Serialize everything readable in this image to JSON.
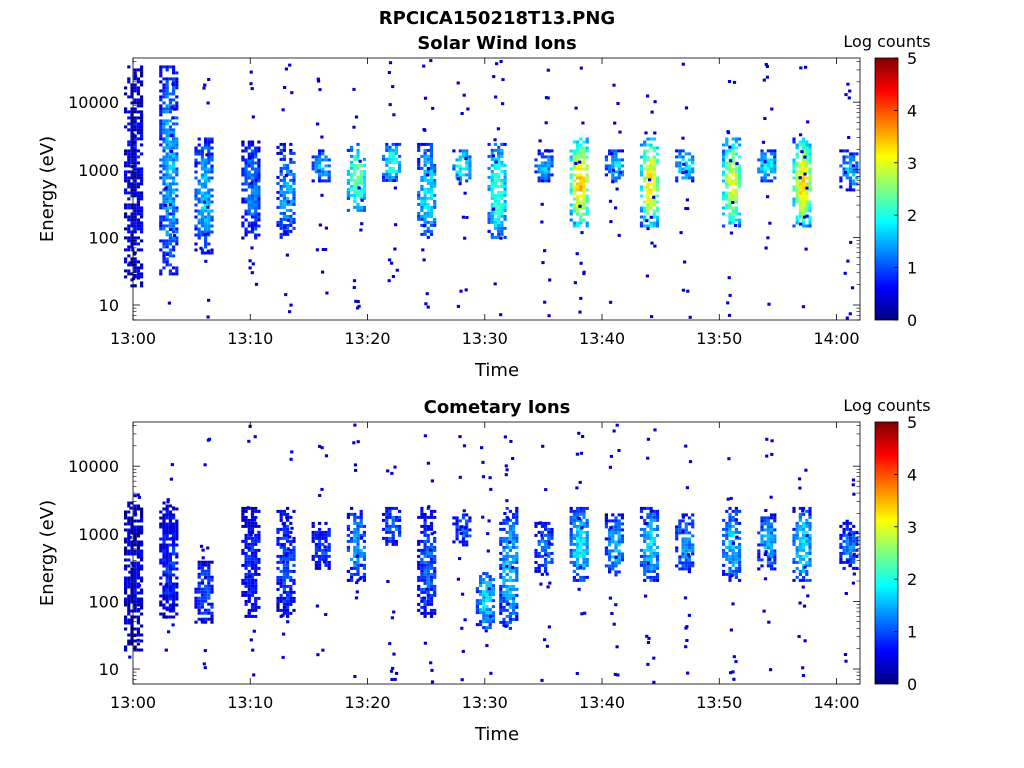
{
  "figure": {
    "title": "RPCICA150218T13.PNG"
  },
  "colors": {
    "axes": "#000000",
    "background": "#ffffff",
    "colormap": "jet"
  },
  "chart_data": [
    {
      "type": "heatmap",
      "title": "Solar Wind Ions",
      "xlabel": "Time",
      "ylabel": "Energy (eV)",
      "y_scale": "log",
      "ylim": [
        6,
        45000
      ],
      "xlim": [
        "13:00",
        "14:02"
      ],
      "x_ticks": [
        "13:00",
        "13:10",
        "13:20",
        "13:30",
        "13:40",
        "13:50",
        "14:00"
      ],
      "y_ticks": [
        "10",
        "100",
        "1000",
        "10000"
      ],
      "y_tick_values": [
        10,
        100,
        1000,
        10000
      ],
      "colorbar": {
        "label": "Log counts",
        "min": 0,
        "max": 5,
        "ticks": [
          "0",
          "1",
          "2",
          "3",
          "4",
          "5"
        ]
      },
      "description_blobs": [
        {
          "t": "13:00",
          "e_lo": 20,
          "e_hi": 35000,
          "z": 0.6
        },
        {
          "t": "13:03",
          "e_lo": 30,
          "e_hi": 35000,
          "z": 1.5
        },
        {
          "t": "13:06",
          "e_lo": 60,
          "e_hi": 3000,
          "z": 1.6
        },
        {
          "t": "13:10",
          "e_lo": 100,
          "e_hi": 3000,
          "z": 1.2
        },
        {
          "t": "13:13",
          "e_lo": 100,
          "e_hi": 2500,
          "z": 1.4
        },
        {
          "t": "13:16",
          "e_lo": 700,
          "e_hi": 2000,
          "z": 1.5
        },
        {
          "t": "13:19",
          "e_lo": 250,
          "e_hi": 2500,
          "z": 2.4
        },
        {
          "t": "13:22",
          "e_lo": 700,
          "e_hi": 2500,
          "z": 2.0
        },
        {
          "t": "13:25",
          "e_lo": 100,
          "e_hi": 2500,
          "z": 1.8
        },
        {
          "t": "13:28",
          "e_lo": 700,
          "e_hi": 2000,
          "z": 2.0
        },
        {
          "t": "13:31",
          "e_lo": 100,
          "e_hi": 2500,
          "z": 2.2
        },
        {
          "t": "13:35",
          "e_lo": 700,
          "e_hi": 2000,
          "z": 1.5
        },
        {
          "t": "13:38",
          "e_lo": 150,
          "e_hi": 3000,
          "z": 3.4
        },
        {
          "t": "13:41",
          "e_lo": 700,
          "e_hi": 2000,
          "z": 1.7
        },
        {
          "t": "13:44",
          "e_lo": 150,
          "e_hi": 3000,
          "z": 3.2
        },
        {
          "t": "13:47",
          "e_lo": 700,
          "e_hi": 2000,
          "z": 1.8
        },
        {
          "t": "13:51",
          "e_lo": 150,
          "e_hi": 3000,
          "z": 3.0
        },
        {
          "t": "13:54",
          "e_lo": 700,
          "e_hi": 2000,
          "z": 1.8
        },
        {
          "t": "13:57",
          "e_lo": 150,
          "e_hi": 3000,
          "z": 3.3
        },
        {
          "t": "14:01",
          "e_lo": 500,
          "e_hi": 2000,
          "z": 1.5
        }
      ]
    },
    {
      "type": "heatmap",
      "title": "Cometary Ions",
      "xlabel": "Time",
      "ylabel": "Energy (eV)",
      "y_scale": "log",
      "ylim": [
        6,
        45000
      ],
      "xlim": [
        "13:00",
        "14:02"
      ],
      "x_ticks": [
        "13:00",
        "13:10",
        "13:20",
        "13:30",
        "13:40",
        "13:50",
        "14:00"
      ],
      "y_ticks": [
        "10",
        "100",
        "1000",
        "10000"
      ],
      "y_tick_values": [
        10,
        100,
        1000,
        10000
      ],
      "colorbar": {
        "label": "Log counts",
        "min": 0,
        "max": 5,
        "ticks": [
          "0",
          "1",
          "2",
          "3",
          "4",
          "5"
        ]
      },
      "description_blobs": [
        {
          "t": "13:00",
          "e_lo": 20,
          "e_hi": 3000,
          "z": 0.5
        },
        {
          "t": "13:03",
          "e_lo": 60,
          "e_hi": 3000,
          "z": 0.8
        },
        {
          "t": "13:06",
          "e_lo": 50,
          "e_hi": 400,
          "z": 1.0
        },
        {
          "t": "13:10",
          "e_lo": 60,
          "e_hi": 2500,
          "z": 0.8
        },
        {
          "t": "13:13",
          "e_lo": 60,
          "e_hi": 2500,
          "z": 1.0
        },
        {
          "t": "13:16",
          "e_lo": 300,
          "e_hi": 1500,
          "z": 0.9
        },
        {
          "t": "13:19",
          "e_lo": 200,
          "e_hi": 2500,
          "z": 1.4
        },
        {
          "t": "13:22",
          "e_lo": 700,
          "e_hi": 2500,
          "z": 1.2
        },
        {
          "t": "13:25",
          "e_lo": 60,
          "e_hi": 2500,
          "z": 1.1
        },
        {
          "t": "13:28",
          "e_lo": 700,
          "e_hi": 2000,
          "z": 1.1
        },
        {
          "t": "13:30",
          "e_lo": 40,
          "e_hi": 300,
          "z": 1.7
        },
        {
          "t": "13:32",
          "e_lo": 40,
          "e_hi": 2500,
          "z": 1.6
        },
        {
          "t": "13:35",
          "e_lo": 250,
          "e_hi": 1500,
          "z": 1.2
        },
        {
          "t": "13:38",
          "e_lo": 200,
          "e_hi": 2500,
          "z": 1.8
        },
        {
          "t": "13:41",
          "e_lo": 250,
          "e_hi": 2000,
          "z": 1.5
        },
        {
          "t": "13:44",
          "e_lo": 200,
          "e_hi": 2500,
          "z": 1.7
        },
        {
          "t": "13:47",
          "e_lo": 300,
          "e_hi": 2000,
          "z": 1.4
        },
        {
          "t": "13:51",
          "e_lo": 200,
          "e_hi": 2500,
          "z": 1.6
        },
        {
          "t": "13:54",
          "e_lo": 300,
          "e_hi": 2000,
          "z": 1.5
        },
        {
          "t": "13:57",
          "e_lo": 200,
          "e_hi": 2500,
          "z": 1.8
        },
        {
          "t": "14:01",
          "e_lo": 300,
          "e_hi": 1500,
          "z": 1.2
        }
      ]
    }
  ]
}
